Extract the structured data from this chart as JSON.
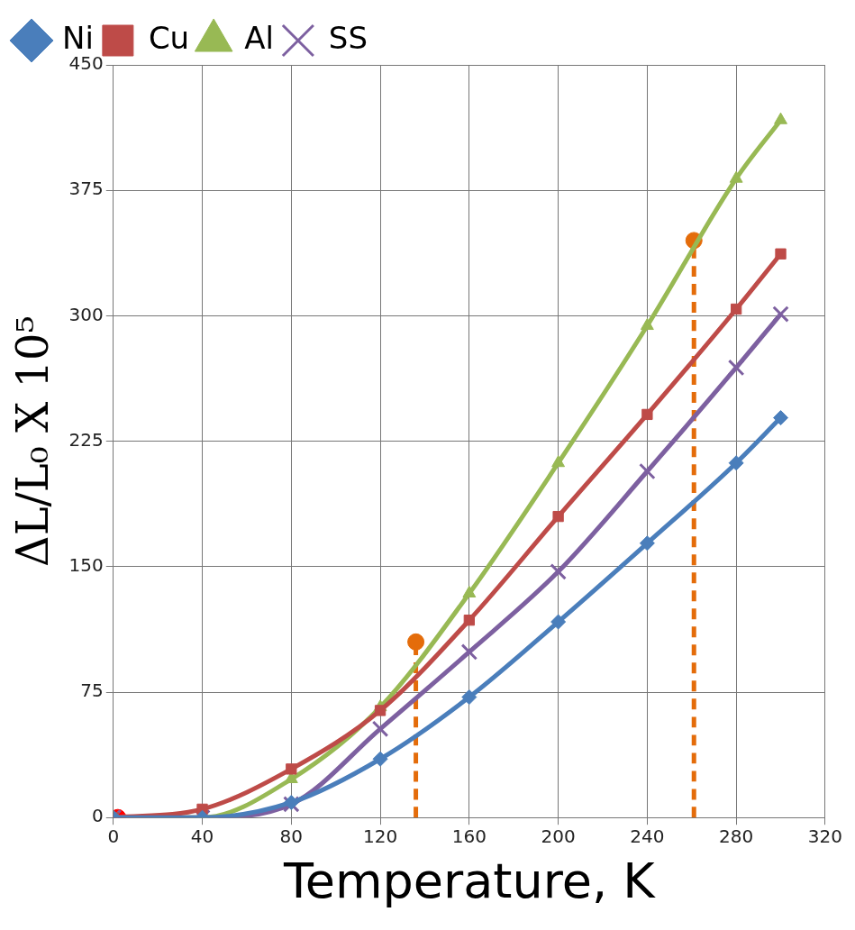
{
  "chart_data": {
    "type": "line",
    "xlabel": "Temperature, K",
    "ylabel": "ΔL/L₀ X 10⁵",
    "x": [
      0,
      40,
      80,
      120,
      160,
      200,
      240,
      280,
      300
    ],
    "series": [
      {
        "name": "Ni",
        "color": "#4a7ebb",
        "marker": "diamond",
        "values": [
          0,
          0,
          9,
          35,
          72,
          117,
          164,
          212,
          239
        ]
      },
      {
        "name": "Cu",
        "color": "#be4b48",
        "marker": "square",
        "values": [
          0,
          5,
          29,
          64,
          118,
          180,
          241,
          304,
          337
        ]
      },
      {
        "name": "Al",
        "color": "#98b954",
        "marker": "triangle",
        "values": [
          0,
          0,
          23,
          66,
          134,
          212,
          294,
          382,
          417
        ]
      },
      {
        "name": "SS",
        "color": "#7d60a0",
        "marker": "cross",
        "values": [
          0,
          0,
          8,
          53,
          99,
          147,
          207,
          269,
          301
        ]
      },
      {
        "type": "line",
        "color": "#e46c0a",
        "marker": "none",
        "line_style": "dashed",
        "x": [
          136,
          136
        ],
        "values": [
          0,
          105
        ]
      },
      {
        "type": "scatter",
        "color": "#e46c0a",
        "marker": "circle",
        "x": [
          136
        ],
        "values": [
          105
        ]
      },
      {
        "type": "line",
        "color": "#e46c0a",
        "marker": "none",
        "line_style": "dashed",
        "x": [
          261,
          261
        ],
        "values": [
          0,
          345
        ]
      },
      {
        "type": "scatter",
        "color": "#e46c0a",
        "marker": "circle",
        "x": [
          261
        ],
        "values": [
          345
        ]
      },
      {
        "type": "scatter",
        "color": "#ff0000",
        "marker": "circle",
        "x": [
          2
        ],
        "values": [
          0
        ]
      }
    ],
    "xlim": [
      0,
      320
    ],
    "xticks": [
      0,
      40,
      80,
      120,
      160,
      200,
      240,
      280,
      320
    ],
    "ylim": [
      0,
      450
    ],
    "yticks": [
      0,
      75,
      150,
      225,
      300,
      375,
      450
    ],
    "grid": true,
    "legend": "top left"
  }
}
